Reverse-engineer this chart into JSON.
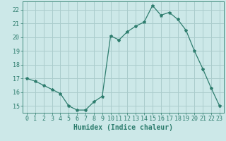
{
  "x": [
    0,
    1,
    2,
    3,
    4,
    5,
    6,
    7,
    8,
    9,
    10,
    11,
    12,
    13,
    14,
    15,
    16,
    17,
    18,
    19,
    20,
    21,
    22,
    23
  ],
  "y": [
    17.0,
    16.8,
    16.5,
    16.2,
    15.9,
    15.0,
    14.7,
    14.7,
    15.3,
    15.7,
    20.1,
    19.8,
    20.4,
    20.8,
    21.1,
    22.3,
    21.6,
    21.8,
    21.3,
    20.5,
    19.0,
    17.7,
    16.3,
    15.0
  ],
  "line_color": "#2e7d6e",
  "marker": "*",
  "marker_size": 3,
  "bg_color": "#cce8e8",
  "grid_color": "#aacccc",
  "xlabel": "Humidex (Indice chaleur)",
  "xlabel_fontsize": 7,
  "tick_fontsize": 6,
  "ylim": [
    14.5,
    22.6
  ],
  "xlim": [
    -0.5,
    23.5
  ],
  "yticks": [
    15,
    16,
    17,
    18,
    19,
    20,
    21,
    22
  ],
  "xticks": [
    0,
    1,
    2,
    3,
    4,
    5,
    6,
    7,
    8,
    9,
    10,
    11,
    12,
    13,
    14,
    15,
    16,
    17,
    18,
    19,
    20,
    21,
    22,
    23
  ]
}
